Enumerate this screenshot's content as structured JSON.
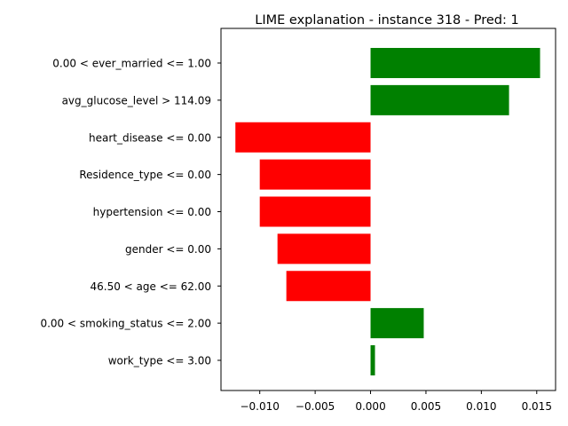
{
  "chart_data": {
    "type": "bar",
    "orientation": "horizontal",
    "title": "LIME explanation - instance 318 - Pred: 1",
    "xlabel": "",
    "ylabel": "",
    "categories": [
      "0.00 < ever_married <= 1.00",
      "avg_glucose_level > 114.09",
      "heart_disease <= 0.00",
      "Residence_type <= 0.00",
      "hypertension <= 0.00",
      "gender <= 0.00",
      "46.50 < age <= 62.00",
      "0.00 < smoking_status <= 2.00",
      "work_type <= 3.00"
    ],
    "values": [
      0.0153,
      0.0125,
      -0.0122,
      -0.01,
      -0.01,
      -0.0084,
      -0.0076,
      0.0048,
      0.0004
    ],
    "xlim": [
      -0.0135,
      0.0167
    ],
    "xticks": [
      -0.01,
      -0.005,
      0.0,
      0.005,
      0.01,
      0.015
    ],
    "xtick_labels": [
      "−0.010",
      "−0.005",
      "0.000",
      "0.005",
      "0.010",
      "0.015"
    ],
    "colors": {
      "positive": "#008000",
      "negative": "#ff0000"
    },
    "grid": false,
    "legend": "none"
  }
}
